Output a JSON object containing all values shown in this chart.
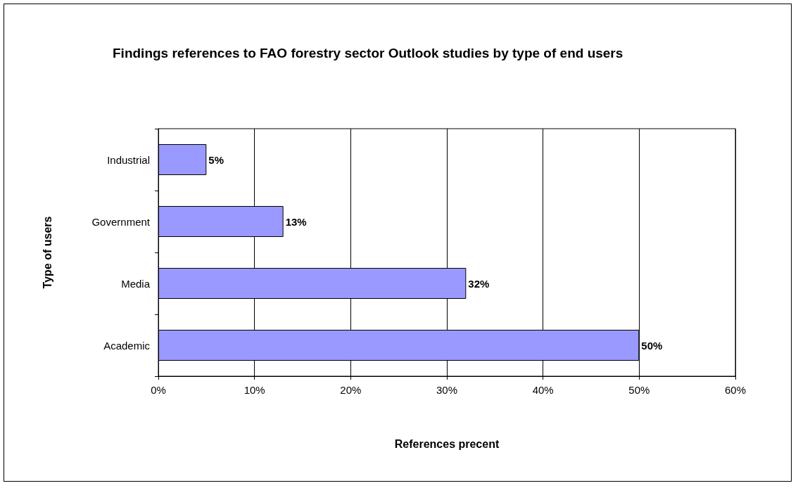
{
  "chart_data": {
    "type": "bar",
    "orientation": "horizontal",
    "title": "Findings references to FAO forestry sector Outlook studies by type of end users",
    "xlabel": "References precent",
    "ylabel": "Type of users",
    "categories": [
      "Industrial",
      "Government",
      "Media",
      "Academic"
    ],
    "values": [
      5,
      13,
      32,
      50
    ],
    "color": "#9999ff",
    "value_labels": [
      "5%",
      "13%",
      "32%",
      "50%"
    ],
    "xlim": [
      0,
      60
    ],
    "xticks": [
      {
        "value": 0,
        "label": "0%"
      },
      {
        "value": 10,
        "label": "10%"
      },
      {
        "value": 20,
        "label": "20%"
      },
      {
        "value": 30,
        "label": "30%"
      },
      {
        "value": 40,
        "label": "40%"
      },
      {
        "value": 50,
        "label": "50%"
      },
      {
        "value": 60,
        "label": "60%"
      }
    ],
    "grid": "x"
  }
}
